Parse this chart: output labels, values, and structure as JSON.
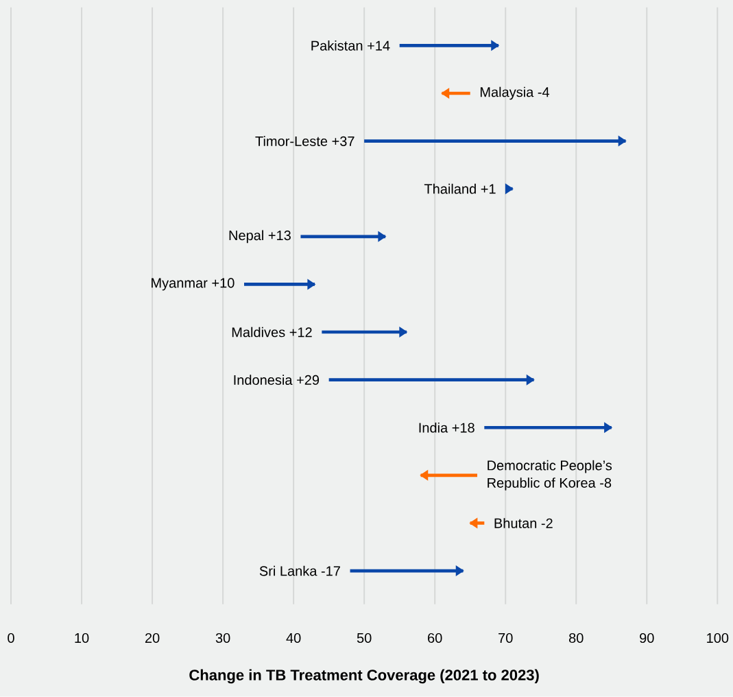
{
  "chart_data": {
    "type": "bar",
    "orientation": "horizontal",
    "xlabel": "Change in TB Treatment Coverage (2021 to 2023)",
    "categories": [
      "Pakistan +14",
      "Malaysia -4",
      "Timor-Leste +37",
      "Thailand +1",
      "Nepal +13",
      "Myanmar +10",
      "Maldives +12",
      "Indonesia +29",
      "India +18",
      "Democratic People’s Republic of Korea -8",
      "Bhutan -2",
      "Sri Lanka -17"
    ],
    "base": [
      55,
      65,
      50,
      70,
      41,
      33,
      44,
      45,
      67,
      66,
      67,
      48
    ],
    "values": [
      14,
      -4,
      37,
      1,
      12,
      10,
      12,
      29,
      18,
      -8,
      -2,
      16
    ],
    "colors": [
      "#0a47a9",
      "#ff6b00",
      "#0a47a9",
      "#0a47a9",
      "#0a47a9",
      "#0a47a9",
      "#0a47a9",
      "#0a47a9",
      "#0a47a9",
      "#ff6b00",
      "#ff6b00",
      "#0a47a9"
    ],
    "xlim": [
      0,
      100
    ],
    "xticks": [
      0,
      10,
      20,
      30,
      40,
      50,
      60,
      70,
      80,
      90,
      100
    ],
    "grid": "x",
    "legend": false
  }
}
